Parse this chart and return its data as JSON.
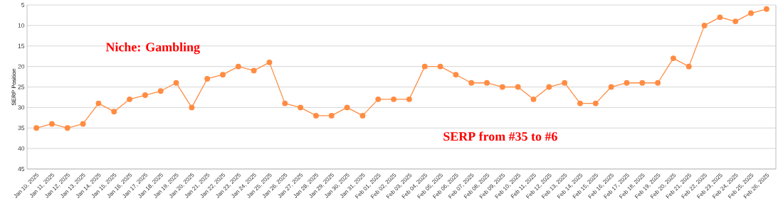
{
  "chart_data": {
    "type": "line",
    "ylabel": "SERP Position",
    "categories": [
      "Jan 10, 2025",
      "Jan 11, 2025",
      "Jan 12, 2025",
      "Jan 13, 2025",
      "Jan 14, 2025",
      "Jan 15, 2025",
      "Jan 16, 2025",
      "Jan 17, 2025",
      "Jan 18, 2025",
      "Jan 19, 2025",
      "Jan 20, 2025",
      "Jan 21, 2025",
      "Jan 22, 2025",
      "Jan 23, 2025",
      "Jan 24, 2025",
      "Jan 25, 2025",
      "Jan 26, 2025",
      "Jan 27, 2025",
      "Jan 28, 2025",
      "Jan 29, 2025",
      "Jan 30, 2025",
      "Jan 31, 2025",
      "Feb 01, 2025",
      "Feb 02, 2025",
      "Feb 03, 2025",
      "Feb 04, 2025",
      "Feb 05, 2025",
      "Feb 06, 2025",
      "Feb 07, 2025",
      "Feb 08, 2025",
      "Feb 09, 2025",
      "Feb 10, 2025",
      "Feb 11, 2025",
      "Feb 12, 2025",
      "Feb 13, 2025",
      "Feb 14, 2025",
      "Feb 15, 2025",
      "Feb 16, 2025",
      "Feb 17, 2025",
      "Feb 18, 2025",
      "Feb 19, 2025",
      "Feb 20, 2025",
      "Feb 21, 2025",
      "Feb 22, 2025",
      "Feb 23, 2025",
      "Feb 24, 2025",
      "Feb 25, 2025",
      "Feb 26, 2025"
    ],
    "values": [
      35,
      34,
      35,
      34,
      29,
      31,
      28,
      27,
      26,
      24,
      30,
      23,
      22,
      20,
      21,
      19,
      29,
      30,
      32,
      32,
      30,
      32,
      28,
      28,
      28,
      20,
      20,
      22,
      24,
      24,
      25,
      25,
      28,
      25,
      24,
      29,
      29,
      25,
      24,
      24,
      24,
      18,
      20,
      10,
      8,
      9,
      7,
      6
    ],
    "color": "#ff8c42",
    "ylim": [
      45,
      5
    ],
    "yticks": [
      5,
      10,
      15,
      20,
      25,
      30,
      35,
      40,
      45
    ],
    "grid": "y",
    "marker": "circle",
    "line_style": "solid",
    "annotations": [
      "Niche: Gambling",
      "SERP from #35 to #6"
    ]
  }
}
